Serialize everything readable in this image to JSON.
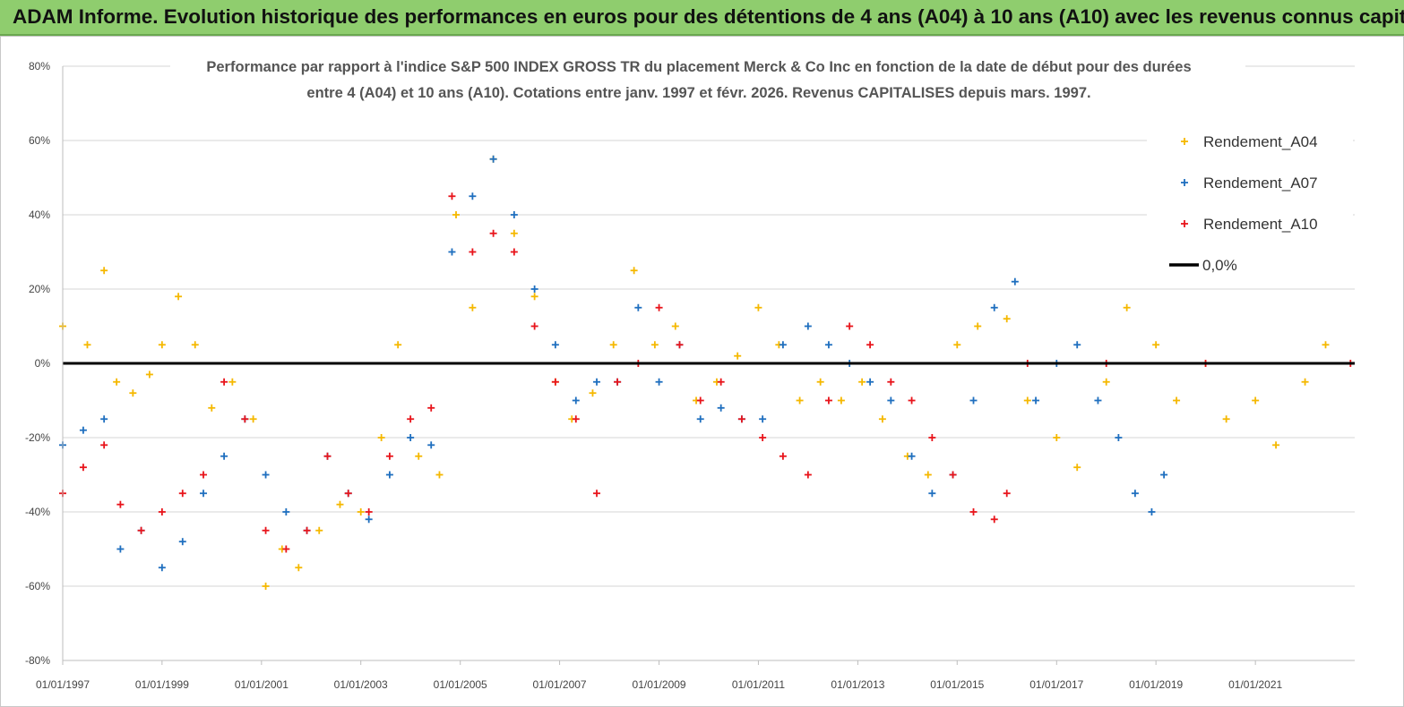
{
  "banner": {
    "title": "ADAM Informe. Evolution historique des performances en euros pour des détentions de 4 ans (A04) à 10 ans (A10) avec les revenus connus capitalisés"
  },
  "chart_data": {
    "type": "scatter",
    "title_lines": [
      "Performance par rapport à l'indice S&P 500 INDEX GROSS TR  du placement Merck & Co Inc en fonction de la date de début pour des durées",
      "entre 4 (A04) et 10 ans (A10).  Cotations entre janv. 1997 et févr. 2026. Revenus CAPITALISES depuis mars. 1997."
    ],
    "x_tick_labels": [
      "01/01/1997",
      "01/01/1999",
      "01/01/2001",
      "01/01/2003",
      "01/01/2005",
      "01/01/2007",
      "01/01/2009",
      "01/01/2011",
      "01/01/2013",
      "01/01/2015",
      "01/01/2017",
      "01/01/2019",
      "01/01/2021"
    ],
    "xlim": [
      "1997-01-01",
      "2023-01-01"
    ],
    "y_tick_labels": [
      "80%",
      "60%",
      "40%",
      "20%",
      "0%",
      "-20%",
      "-40%",
      "-60%",
      "-80%"
    ],
    "ylim": [
      -80,
      80
    ],
    "grid": "horizontal",
    "legend_position": "top-right",
    "series": [
      {
        "name": "Rendement_A04",
        "color": "#f5b800",
        "marker": "+",
        "points": [
          [
            "1997-01-01",
            10
          ],
          [
            "1997-07-01",
            5
          ],
          [
            "1997-11-01",
            25
          ],
          [
            "1998-02-01",
            -5
          ],
          [
            "1998-06-01",
            -8
          ],
          [
            "1998-10-01",
            -3
          ],
          [
            "1999-01-01",
            5
          ],
          [
            "1999-05-01",
            18
          ],
          [
            "1999-09-01",
            5
          ],
          [
            "2000-01-01",
            -12
          ],
          [
            "2000-06-01",
            -5
          ],
          [
            "2000-11-01",
            -15
          ],
          [
            "2001-02-01",
            -60
          ],
          [
            "2001-06-01",
            -50
          ],
          [
            "2001-10-01",
            -55
          ],
          [
            "2002-03-01",
            -45
          ],
          [
            "2002-08-01",
            -38
          ],
          [
            "2003-01-01",
            -40
          ],
          [
            "2003-06-01",
            -20
          ],
          [
            "2003-10-01",
            5
          ],
          [
            "2004-03-01",
            -25
          ],
          [
            "2004-08-01",
            -30
          ],
          [
            "2004-12-01",
            40
          ],
          [
            "2005-04-01",
            15
          ],
          [
            "2005-09-01",
            55
          ],
          [
            "2006-02-01",
            35
          ],
          [
            "2006-07-01",
            18
          ],
          [
            "2006-12-01",
            -5
          ],
          [
            "2007-04-01",
            -15
          ],
          [
            "2007-09-01",
            -8
          ],
          [
            "2008-02-01",
            5
          ],
          [
            "2008-07-01",
            25
          ],
          [
            "2008-12-01",
            5
          ],
          [
            "2009-05-01",
            10
          ],
          [
            "2009-10-01",
            -10
          ],
          [
            "2010-03-01",
            -5
          ],
          [
            "2010-08-01",
            2
          ],
          [
            "2011-01-01",
            15
          ],
          [
            "2011-06-01",
            5
          ],
          [
            "2011-11-01",
            -10
          ],
          [
            "2012-04-01",
            -5
          ],
          [
            "2012-09-01",
            -10
          ],
          [
            "2013-02-01",
            -5
          ],
          [
            "2013-07-01",
            -15
          ],
          [
            "2014-01-01",
            -25
          ],
          [
            "2014-06-01",
            -30
          ],
          [
            "2015-01-01",
            5
          ],
          [
            "2015-06-01",
            10
          ],
          [
            "2016-01-01",
            12
          ],
          [
            "2016-06-01",
            -10
          ],
          [
            "2017-01-01",
            -20
          ],
          [
            "2017-06-01",
            -28
          ],
          [
            "2018-01-01",
            -5
          ],
          [
            "2018-06-01",
            15
          ],
          [
            "2019-01-01",
            5
          ],
          [
            "2019-06-01",
            -10
          ],
          [
            "2020-01-01",
            0
          ],
          [
            "2020-06-01",
            -15
          ],
          [
            "2021-01-01",
            -10
          ],
          [
            "2021-06-01",
            -22
          ],
          [
            "2022-01-01",
            -5
          ],
          [
            "2022-06-01",
            5
          ]
        ]
      },
      {
        "name": "Rendement_A07",
        "color": "#1f6fbf",
        "marker": "+",
        "points": [
          [
            "1997-01-01",
            -22
          ],
          [
            "1997-06-01",
            -18
          ],
          [
            "1997-11-01",
            -15
          ],
          [
            "1998-03-01",
            -50
          ],
          [
            "1998-08-01",
            -45
          ],
          [
            "1999-01-01",
            -55
          ],
          [
            "1999-06-01",
            -48
          ],
          [
            "1999-11-01",
            -35
          ],
          [
            "2000-04-01",
            -25
          ],
          [
            "2000-09-01",
            -15
          ],
          [
            "2001-02-01",
            -30
          ],
          [
            "2001-07-01",
            -40
          ],
          [
            "2001-12-01",
            -45
          ],
          [
            "2002-05-01",
            -25
          ],
          [
            "2002-10-01",
            -35
          ],
          [
            "2003-03-01",
            -42
          ],
          [
            "2003-08-01",
            -30
          ],
          [
            "2004-01-01",
            -20
          ],
          [
            "2004-06-01",
            -22
          ],
          [
            "2004-11-01",
            30
          ],
          [
            "2005-04-01",
            45
          ],
          [
            "2005-09-01",
            55
          ],
          [
            "2006-02-01",
            40
          ],
          [
            "2006-07-01",
            20
          ],
          [
            "2006-12-01",
            5
          ],
          [
            "2007-05-01",
            -10
          ],
          [
            "2007-10-01",
            -5
          ],
          [
            "2008-03-01",
            -5
          ],
          [
            "2008-08-01",
            15
          ],
          [
            "2009-01-01",
            -5
          ],
          [
            "2009-06-01",
            5
          ],
          [
            "2009-11-01",
            -15
          ],
          [
            "2010-04-01",
            -12
          ],
          [
            "2010-09-01",
            -15
          ],
          [
            "2011-02-01",
            -15
          ],
          [
            "2011-07-01",
            5
          ],
          [
            "2012-01-01",
            10
          ],
          [
            "2012-06-01",
            5
          ],
          [
            "2012-11-01",
            0
          ],
          [
            "2013-04-01",
            -5
          ],
          [
            "2013-09-01",
            -10
          ],
          [
            "2014-02-01",
            -25
          ],
          [
            "2014-07-01",
            -35
          ],
          [
            "2014-12-01",
            -30
          ],
          [
            "2015-05-01",
            -10
          ],
          [
            "2015-10-01",
            15
          ],
          [
            "2016-03-01",
            22
          ],
          [
            "2016-08-01",
            -10
          ],
          [
            "2017-01-01",
            0
          ],
          [
            "2017-06-01",
            5
          ],
          [
            "2017-11-01",
            -10
          ],
          [
            "2018-04-01",
            -20
          ],
          [
            "2018-08-01",
            -35
          ],
          [
            "2018-12-01",
            -40
          ],
          [
            "2019-03-01",
            -30
          ]
        ]
      },
      {
        "name": "Rendement_A10",
        "color": "#e8141b",
        "marker": "+",
        "points": [
          [
            "1997-01-01",
            -35
          ],
          [
            "1997-06-01",
            -28
          ],
          [
            "1997-11-01",
            -22
          ],
          [
            "1998-03-01",
            -38
          ],
          [
            "1998-08-01",
            -45
          ],
          [
            "1999-01-01",
            -40
          ],
          [
            "1999-06-01",
            -35
          ],
          [
            "1999-11-01",
            -30
          ],
          [
            "2000-04-01",
            -5
          ],
          [
            "2000-09-01",
            -15
          ],
          [
            "2001-02-01",
            -45
          ],
          [
            "2001-07-01",
            -50
          ],
          [
            "2001-12-01",
            -45
          ],
          [
            "2002-05-01",
            -25
          ],
          [
            "2002-10-01",
            -35
          ],
          [
            "2003-03-01",
            -40
          ],
          [
            "2003-08-01",
            -25
          ],
          [
            "2004-01-01",
            -15
          ],
          [
            "2004-06-01",
            -12
          ],
          [
            "2004-11-01",
            45
          ],
          [
            "2005-04-01",
            30
          ],
          [
            "2005-09-01",
            35
          ],
          [
            "2006-02-01",
            30
          ],
          [
            "2006-07-01",
            10
          ],
          [
            "2006-12-01",
            -5
          ],
          [
            "2007-05-01",
            -15
          ],
          [
            "2007-10-01",
            -35
          ],
          [
            "2008-03-01",
            -5
          ],
          [
            "2008-08-01",
            0
          ],
          [
            "2009-01-01",
            15
          ],
          [
            "2009-06-01",
            5
          ],
          [
            "2009-11-01",
            -10
          ],
          [
            "2010-04-01",
            -5
          ],
          [
            "2010-09-01",
            -15
          ],
          [
            "2011-02-01",
            -20
          ],
          [
            "2011-07-01",
            -25
          ],
          [
            "2012-01-01",
            -30
          ],
          [
            "2012-06-01",
            -10
          ],
          [
            "2012-11-01",
            10
          ],
          [
            "2013-04-01",
            5
          ],
          [
            "2013-09-01",
            -5
          ],
          [
            "2014-02-01",
            -10
          ],
          [
            "2014-07-01",
            -20
          ],
          [
            "2014-12-01",
            -30
          ],
          [
            "2015-05-01",
            -40
          ],
          [
            "2015-10-01",
            -42
          ],
          [
            "2016-01-01",
            -35
          ],
          [
            "2016-06-01",
            0
          ],
          [
            "2018-01-01",
            0
          ],
          [
            "2020-01-01",
            0
          ],
          [
            "2022-12-01",
            0
          ]
        ]
      },
      {
        "name": "0,0%",
        "color": "#000000",
        "type": "line",
        "y": 0
      }
    ]
  }
}
